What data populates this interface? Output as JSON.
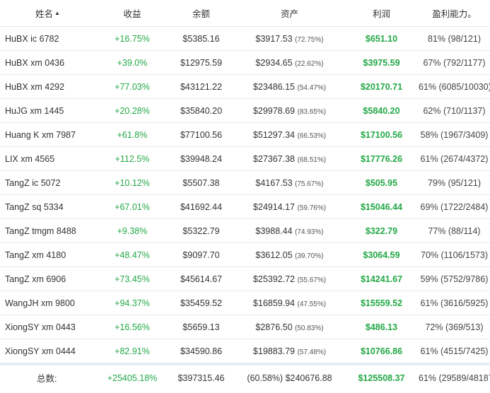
{
  "headers": {
    "name": "姓名",
    "profit": "收益",
    "balance": "余额",
    "assets": "资产",
    "margin": "利润",
    "ability": "盈利能力。"
  },
  "rows": [
    {
      "name": "HuBX ic 6782",
      "profit": "+16.75%",
      "balance": "$5385.16",
      "assets": "$3917.53",
      "assets_pct": "(72.75%)",
      "margin": "$651.10",
      "ability": "81% (98/121)"
    },
    {
      "name": "HuBX xm 0436",
      "profit": "+39.0%",
      "balance": "$12975.59",
      "assets": "$2934.65",
      "assets_pct": "(22.62%)",
      "margin": "$3975.59",
      "ability": "67% (792/1177)"
    },
    {
      "name": "HuBX xm 4292",
      "profit": "+77.03%",
      "balance": "$43121.22",
      "assets": "$23486.15",
      "assets_pct": "(54.47%)",
      "margin": "$20170.71",
      "ability": "61% (6085/10030)"
    },
    {
      "name": "HuJG xm 1445",
      "profit": "+20.28%",
      "balance": "$35840.20",
      "assets": "$29978.69",
      "assets_pct": "(83.65%)",
      "margin": "$5840.20",
      "ability": "62% (710/1137)"
    },
    {
      "name": "Huang K xm 7987",
      "profit": "+61.8%",
      "balance": "$77100.56",
      "assets": "$51297.34",
      "assets_pct": "(66.53%)",
      "margin": "$17100.56",
      "ability": "58% (1967/3409)"
    },
    {
      "name": "LIX xm 4565",
      "profit": "+112.5%",
      "balance": "$39948.24",
      "assets": "$27367.38",
      "assets_pct": "(68.51%)",
      "margin": "$17776.26",
      "ability": "61% (2674/4372)"
    },
    {
      "name": "TangZ ic 5072",
      "profit": "+10.12%",
      "balance": "$5507.38",
      "assets": "$4167.53",
      "assets_pct": "(75.67%)",
      "margin": "$505.95",
      "ability": "79% (95/121)"
    },
    {
      "name": "TangZ sq 5334",
      "profit": "+67.01%",
      "balance": "$41692.44",
      "assets": "$24914.17",
      "assets_pct": "(59.76%)",
      "margin": "$15046.44",
      "ability": "69% (1722/2484)"
    },
    {
      "name": "TangZ tmgm 8488",
      "profit": "+9.38%",
      "balance": "$5322.79",
      "assets": "$3988.44",
      "assets_pct": "(74.93%)",
      "margin": "$322.79",
      "ability": "77% (88/114)"
    },
    {
      "name": "TangZ xm 4180",
      "profit": "+48.47%",
      "balance": "$9097.70",
      "assets": "$3612.05",
      "assets_pct": "(39.70%)",
      "margin": "$3064.59",
      "ability": "70% (1106/1573)"
    },
    {
      "name": "TangZ xm 6906",
      "profit": "+73.45%",
      "balance": "$45614.67",
      "assets": "$25392.72",
      "assets_pct": "(55.67%)",
      "margin": "$14241.67",
      "ability": "59% (5752/9786)"
    },
    {
      "name": "WangJH xm 9800",
      "profit": "+94.37%",
      "balance": "$35459.52",
      "assets": "$16859.94",
      "assets_pct": "(47.55%)",
      "margin": "$15559.52",
      "ability": "61% (3616/5925)"
    },
    {
      "name": "XiongSY xm 0443",
      "profit": "+16.56%",
      "balance": "$5659.13",
      "assets": "$2876.50",
      "assets_pct": "(50.83%)",
      "margin": "$486.13",
      "ability": "72% (369/513)"
    },
    {
      "name": "XiongSY xm 0444",
      "profit": "+82.91%",
      "balance": "$34590.86",
      "assets": "$19883.79",
      "assets_pct": "(57.48%)",
      "margin": "$10766.86",
      "ability": "61% (4515/7425)"
    }
  ],
  "totals": {
    "label": "总数:",
    "profit": "+25405.18%",
    "balance": "$397315.46",
    "assets": "(60.58%) $240676.88",
    "margin": "$125508.37",
    "ability": "61% (29589/48187)"
  },
  "colors": {
    "positive": "#22a845",
    "border": "#e8e8e8",
    "footer_band": "#e6eef5"
  },
  "icons": {
    "sort": "sort-asc-icon"
  }
}
